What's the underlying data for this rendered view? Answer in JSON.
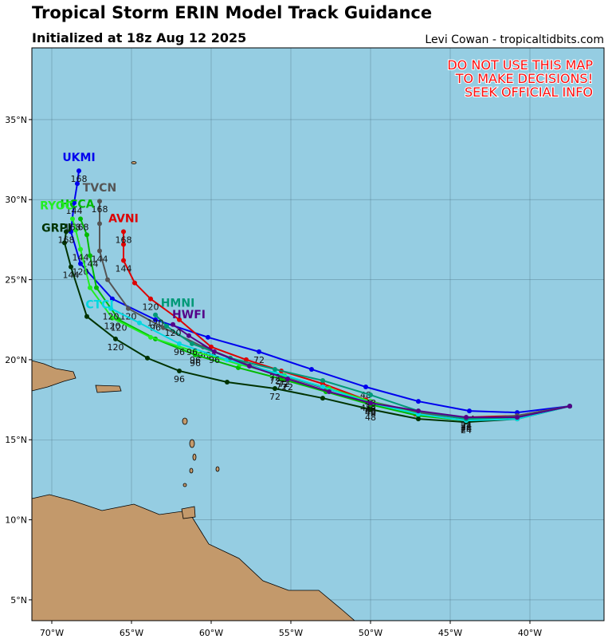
{
  "header": {
    "title": "Tropical Storm ERIN Model Track Guidance",
    "subtitle": "Initialized at 18z Aug 12 2025",
    "credit": "Levi Cowan - tropicaltidbits.com"
  },
  "warning": [
    "DO NOT USE THIS MAP",
    "TO MAKE DECISIONS!",
    "SEEK OFFICIAL INFO"
  ],
  "map": {
    "xlim": [
      -71.25,
      -35.35
    ],
    "ylim": [
      3.7,
      39.48
    ],
    "xticks": [
      {
        "value": -70,
        "label": "70°W"
      },
      {
        "value": -65,
        "label": "65°W"
      },
      {
        "value": -60,
        "label": "60°W"
      },
      {
        "value": -55,
        "label": "55°W"
      },
      {
        "value": -50,
        "label": "50°W"
      },
      {
        "value": -45,
        "label": "45°W"
      },
      {
        "value": -40,
        "label": "40°W"
      }
    ],
    "yticks": [
      {
        "value": 5,
        "label": "5°N"
      },
      {
        "value": 10,
        "label": "10°N"
      },
      {
        "value": 15,
        "label": "15°N"
      },
      {
        "value": 20,
        "label": "20°N"
      },
      {
        "value": 25,
        "label": "25°N"
      },
      {
        "value": 30,
        "label": "30°N"
      },
      {
        "value": 35,
        "label": "35°N"
      }
    ],
    "grid": true
  },
  "tracks": [
    {
      "name": "UKMI",
      "color": "#0000ee",
      "hour_step": 12,
      "lon": [
        -37.5,
        -40.8,
        -43.8,
        -47,
        -50.3,
        -53.7,
        -57,
        -60.2,
        -63.5,
        -66.2,
        -68.2,
        -68.8,
        -68.6,
        -68.4,
        -68.3
      ],
      "lat": [
        17.1,
        16.7,
        16.8,
        17.4,
        18.3,
        19.4,
        20.5,
        21.4,
        22.5,
        23.8,
        26,
        28,
        29.8,
        31,
        31.8
      ],
      "hours": [
        null,
        null,
        24,
        null,
        48,
        null,
        72,
        null,
        96,
        null,
        120,
        null,
        144,
        null,
        168
      ]
    },
    {
      "name": "AVNI",
      "color": "#dd0000",
      "hour_step": 12,
      "lon": [
        -37.5,
        -40.8,
        -44,
        -47.2,
        -50.3,
        -53,
        -55.6,
        -57.8,
        -60,
        -62,
        -63.8,
        -64.8,
        -65.5,
        -65.5,
        -65.5
      ],
      "lat": [
        17.1,
        16.5,
        16.4,
        16.6,
        17.5,
        18.5,
        19.3,
        20,
        20.8,
        22.5,
        23.8,
        24.8,
        26.2,
        27.2,
        28
      ],
      "hours": [
        null,
        null,
        24,
        null,
        48,
        null,
        72,
        null,
        96,
        null,
        120,
        null,
        144,
        null,
        168
      ]
    },
    {
      "name": "TVCN",
      "color": "#555555",
      "hour_step": 12,
      "lon": [
        -37.5,
        -40.8,
        -44,
        -47,
        -50,
        -52.8,
        -55.5,
        -58,
        -60.5,
        -63,
        -65.2,
        -66.5,
        -67,
        -67,
        -67
      ],
      "lat": [
        17.1,
        16.5,
        16.3,
        16.7,
        17.4,
        18.2,
        19,
        19.8,
        20.8,
        22,
        23.2,
        25,
        26.8,
        28.5,
        29.9
      ],
      "hours": [
        null,
        null,
        24,
        null,
        48,
        null,
        72,
        null,
        96,
        null,
        120,
        null,
        144,
        null,
        168
      ]
    },
    {
      "name": "HCCA",
      "color": "#00bb00",
      "hour_step": 12,
      "lon": [
        -37.5,
        -40.8,
        -44,
        -47,
        -50,
        -52.8,
        -55.6,
        -58.3,
        -61,
        -63.5,
        -65.8,
        -67.2,
        -67.6,
        -67.8,
        -68.2
      ],
      "lat": [
        17.1,
        16.4,
        16.2,
        16.5,
        17.2,
        18,
        18.8,
        19.5,
        20.3,
        21.3,
        22.5,
        24.5,
        26.5,
        27.8,
        28.8
      ],
      "hours": [
        null,
        null,
        24,
        null,
        48,
        null,
        72,
        null,
        96,
        null,
        120,
        null,
        144,
        null,
        168
      ]
    },
    {
      "name": "RYOC",
      "color": "#22ee22",
      "hour_step": 12,
      "lon": [
        -37.5,
        -40.8,
        -44,
        -47,
        -50,
        -52.6,
        -55.4,
        -58.2,
        -61,
        -63.8,
        -66.2,
        -67.6,
        -68.2,
        -68.5,
        -68.7
      ],
      "lat": [
        17.1,
        16.4,
        16.2,
        16.6,
        17.4,
        18.2,
        19,
        19.7,
        20.5,
        21.4,
        22.6,
        24.5,
        26.9,
        28.1,
        28.8
      ],
      "hours": [
        null,
        null,
        24,
        null,
        48,
        null,
        72,
        null,
        96,
        null,
        120,
        null,
        144,
        null,
        168
      ]
    },
    {
      "name": "GRPI",
      "color": "#003300",
      "hour_step": 12,
      "lon": [
        -37.5,
        -40.8,
        -44,
        -47,
        -50,
        -53,
        -56,
        -59,
        -62,
        -64,
        -66,
        -67.8,
        -68.8,
        -69.2,
        -69.1
      ],
      "lat": [
        17.1,
        16.3,
        16.1,
        16.3,
        16.9,
        17.6,
        18.2,
        18.6,
        19.3,
        20.1,
        21.3,
        22.7,
        25.8,
        27.3,
        28
      ],
      "hours": [
        null,
        null,
        24,
        null,
        48,
        null,
        72,
        null,
        96,
        null,
        120,
        null,
        144,
        null,
        168
      ]
    },
    {
      "name": "CTCI",
      "color": "#00d8e0",
      "hour_step": 12,
      "lon": [
        -37.5,
        -40.8,
        -44,
        -47,
        -50,
        -53,
        -56,
        -59,
        -62,
        -64.5,
        -66.3
      ],
      "lat": [
        17.1,
        16.3,
        16.2,
        16.6,
        17.3,
        18.3,
        19.2,
        20,
        21,
        22.3,
        23.2
      ],
      "hours": [
        null,
        null,
        24,
        null,
        48,
        null,
        72,
        null,
        96,
        null,
        120
      ]
    },
    {
      "name": "HMNI",
      "color": "#009977",
      "hour_step": 12,
      "lon": [
        -37.5,
        -40.8,
        -44,
        -47,
        -50,
        -53,
        -56,
        -58.8,
        -61.2,
        -62.8,
        -63.5
      ],
      "lat": [
        17.1,
        16.4,
        16.3,
        16.8,
        17.8,
        18.7,
        19.4,
        20.1,
        21,
        22.1,
        22.8
      ],
      "hours": [
        null,
        null,
        24,
        null,
        48,
        null,
        72,
        null,
        96,
        null,
        120
      ]
    },
    {
      "name": "HWFI",
      "color": "#550088",
      "hour_step": 12,
      "lon": [
        -37.5,
        -40.8,
        -44,
        -47,
        -50,
        -52.6,
        -55.2,
        -57.6,
        -59.8,
        -61.4,
        -62.4
      ],
      "lat": [
        17.1,
        16.4,
        16.4,
        16.8,
        17.3,
        18,
        18.8,
        19.6,
        20.5,
        21.5,
        22.2
      ],
      "hours": [
        null,
        null,
        24,
        null,
        48,
        null,
        72,
        null,
        96,
        null,
        120
      ]
    }
  ]
}
